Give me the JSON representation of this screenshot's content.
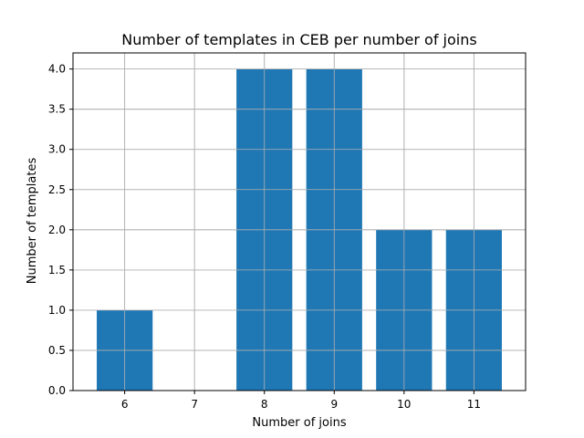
{
  "chart_data": {
    "type": "bar",
    "title": "Number of templates in CEB per number of joins",
    "xlabel": "Number of joins",
    "ylabel": "Number of templates",
    "categories": [
      "6",
      "7",
      "8",
      "9",
      "10",
      "11"
    ],
    "x": [
      6,
      7,
      8,
      9,
      10,
      11
    ],
    "values": [
      1,
      0,
      4,
      4,
      2,
      2
    ],
    "ylim": [
      0,
      4.2
    ],
    "yticks": [
      "0.0",
      "0.5",
      "1.0",
      "1.5",
      "2.0",
      "2.5",
      "3.0",
      "3.5",
      "4.0"
    ],
    "grid": true,
    "bar_color": "#1f77b4"
  }
}
